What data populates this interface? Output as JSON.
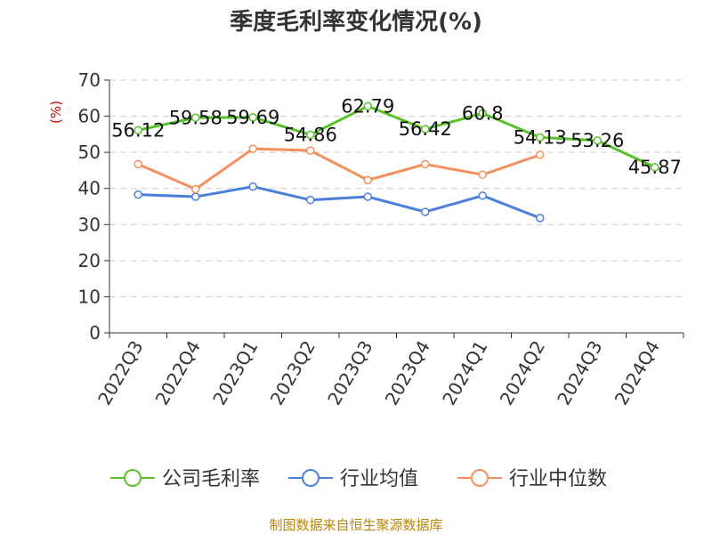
{
  "chart_data": {
    "type": "line",
    "title": "季度毛利率变化情况(%)",
    "ylabel": "(%)",
    "xlabel": "",
    "ylim": [
      0,
      70
    ],
    "yticks": [
      0,
      10,
      20,
      30,
      40,
      50,
      60,
      70
    ],
    "grid": true,
    "legend_position": "bottom",
    "categories": [
      "2022Q3",
      "2022Q4",
      "2023Q1",
      "2023Q2",
      "2023Q3",
      "2023Q4",
      "2024Q1",
      "2024Q2",
      "2024Q3",
      "2024Q4"
    ],
    "series": [
      {
        "name": "公司毛利率",
        "color": "#5ac12a",
        "labeled": true,
        "values": [
          56.12,
          59.58,
          59.69,
          54.86,
          62.79,
          56.42,
          60.8,
          54.13,
          53.26,
          45.87
        ],
        "labels": [
          "56.12",
          "59.58",
          "59.69",
          "54.86",
          "62.79",
          "56.42",
          "60.8",
          "54.13",
          "53.26",
          "45.87"
        ]
      },
      {
        "name": "行业均值",
        "color": "#4a7fdc",
        "labeled": false,
        "values": [
          38.3,
          37.7,
          40.5,
          36.8,
          37.7,
          33.5,
          38.0,
          31.8,
          null,
          null
        ]
      },
      {
        "name": "行业中位数",
        "color": "#f5905c",
        "labeled": false,
        "values": [
          46.7,
          39.8,
          51.0,
          50.5,
          42.3,
          46.7,
          43.8,
          49.3,
          null,
          null
        ]
      }
    ]
  },
  "source": "制图数据来自恒生聚源数据库"
}
